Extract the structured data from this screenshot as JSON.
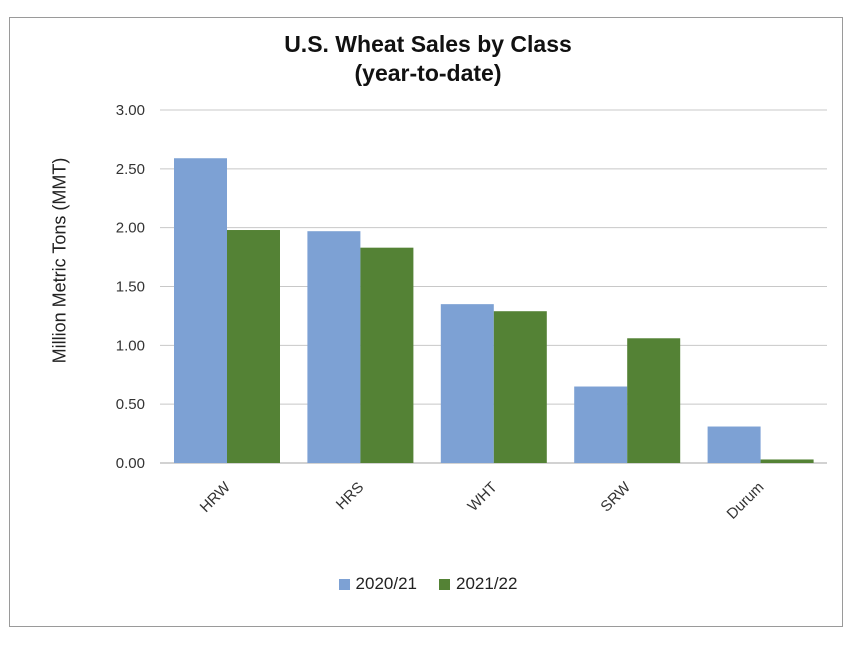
{
  "chart_data": {
    "type": "bar",
    "title_line1": "U.S. Wheat Sales by Class",
    "title_line2": "(year-to-date)",
    "xlabel": "",
    "ylabel": "Million Metric Tons (MMT)",
    "categories": [
      "HRW",
      "HRS",
      "WHT",
      "SRW",
      "Durum"
    ],
    "series": [
      {
        "name": "2020/21",
        "color": "#7da1d4",
        "values": [
          2.59,
          1.97,
          1.35,
          0.65,
          0.31
        ]
      },
      {
        "name": "2021/22",
        "color": "#548235",
        "values": [
          1.98,
          1.83,
          1.29,
          1.06,
          0.03
        ]
      }
    ],
    "ylim": [
      0,
      3.0
    ],
    "yticks": [
      "0.00",
      "0.50",
      "1.00",
      "1.50",
      "2.00",
      "2.50",
      "3.00"
    ],
    "grid": true,
    "legend_position": "bottom"
  }
}
